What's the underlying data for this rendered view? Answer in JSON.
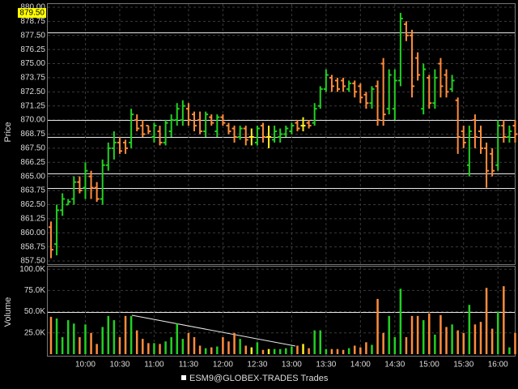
{
  "chart_data": [
    {
      "type": "ohlc",
      "y_label": "Price",
      "open": [
        860.5,
        859,
        862,
        862.5,
        863,
        864.5,
        864,
        865,
        864,
        863,
        866,
        867.5,
        868,
        868,
        868,
        870,
        869.5,
        869.5,
        868.5,
        869,
        868,
        869,
        870,
        870,
        871,
        870.5,
        870,
        869,
        870.25,
        869,
        870.25,
        869.5,
        869.25,
        868.5,
        869.25,
        868.5,
        868,
        869.5,
        868.5,
        868.25,
        868.5,
        868.75,
        869,
        869.75,
        869.5,
        869.75,
        869.75,
        871.25,
        872.75,
        873.75,
        873.5,
        873.5,
        872.75,
        873.25,
        873,
        872.25,
        871.5,
        873,
        875,
        871,
        871,
        873.5,
        878.5,
        877.5,
        875.5,
        871,
        873.75,
        871.5,
        875,
        874,
        872.75,
        871.75,
        869,
        866,
        870,
        869,
        867.5,
        867,
        866,
        869.5,
        868.5,
        869.5
      ],
      "high": [
        861,
        862.5,
        863.5,
        863,
        865,
        865,
        866.25,
        865.5,
        864.5,
        866.5,
        868,
        869,
        868.5,
        868.25,
        871,
        870.5,
        870,
        869.5,
        869.75,
        869.5,
        870,
        870.5,
        871.5,
        871.75,
        871.5,
        870.75,
        870.75,
        870.75,
        870.5,
        870.5,
        870.5,
        869.75,
        869.5,
        869.5,
        869.5,
        869.25,
        869.5,
        869.75,
        869.5,
        869.5,
        869.25,
        869.5,
        869.75,
        870,
        870.25,
        870,
        871.5,
        873,
        874.5,
        874,
        873.75,
        873.75,
        873.5,
        873.5,
        873.25,
        872.5,
        873,
        873.5,
        875.5,
        874.5,
        874.5,
        879.5,
        878.75,
        878,
        876,
        875,
        874,
        874.5,
        875.5,
        874.5,
        874,
        872,
        869.5,
        869.5,
        870.5,
        869.5,
        868,
        867.5,
        870,
        870,
        869.5,
        870
      ],
      "low": [
        857.75,
        858,
        861.5,
        862.5,
        862.5,
        863.5,
        863,
        863,
        862.75,
        862.5,
        865.5,
        866.5,
        867,
        867,
        867.5,
        869,
        868.5,
        868.75,
        868,
        867.75,
        867.75,
        868.5,
        869.5,
        869.5,
        869.5,
        869,
        868.75,
        868.5,
        869.5,
        868.5,
        869.5,
        868.75,
        868,
        868.25,
        867.75,
        867.75,
        867.75,
        868,
        867.5,
        868,
        868,
        868.5,
        868.75,
        869,
        869,
        869.25,
        869.5,
        871,
        872.5,
        872.5,
        872.5,
        872.5,
        872.5,
        872,
        871.5,
        871,
        871,
        869.5,
        869.5,
        870.5,
        870,
        873,
        877,
        872,
        873.5,
        870.5,
        871,
        871,
        872,
        872,
        872.5,
        867,
        867.5,
        865,
        867.5,
        867,
        864,
        865,
        865.5,
        868,
        868,
        868
      ],
      "close": [
        858.5,
        862,
        863,
        862.75,
        864.5,
        863.75,
        865.5,
        864,
        863,
        866,
        867.5,
        868,
        867.25,
        867.5,
        870.5,
        869.25,
        868.75,
        869,
        869.5,
        868,
        869.75,
        870,
        871,
        871.25,
        870,
        869.5,
        869,
        870.5,
        869.75,
        870.25,
        869.75,
        869,
        868.5,
        869.25,
        868.25,
        868.5,
        869.25,
        868.5,
        868.5,
        869,
        868.75,
        869.25,
        869.5,
        869.25,
        869.5,
        869.5,
        871,
        872.75,
        874,
        873,
        872.75,
        873,
        873.25,
        872.5,
        872,
        871.5,
        872.75,
        870,
        870.5,
        874,
        873.5,
        879,
        877.5,
        873,
        874,
        874.5,
        871.5,
        873.75,
        873,
        872.5,
        873.5,
        868.5,
        868,
        869,
        868.5,
        867.5,
        865.5,
        865.5,
        869.5,
        868.5,
        869,
        868.75
      ],
      "up_color": "#22d022",
      "down_color": "#ff8c3c",
      "flat_color": "#ffee22",
      "ylim": [
        857,
        880.5
      ],
      "yticks": [
        {
          "value": 880,
          "label": "880.00"
        },
        {
          "value": 878.75,
          "label": "878.75"
        },
        {
          "value": 877.5,
          "label": "877.50"
        },
        {
          "value": 876.25,
          "label": "876.25"
        },
        {
          "value": 875,
          "label": "875.00"
        },
        {
          "value": 873.75,
          "label": "873.75"
        },
        {
          "value": 872.5,
          "label": "872.50"
        },
        {
          "value": 871.25,
          "label": "871.25"
        },
        {
          "value": 870,
          "label": "870.00"
        },
        {
          "value": 868.75,
          "label": "868.75"
        },
        {
          "value": 867.5,
          "label": "867.50"
        },
        {
          "value": 866.25,
          "label": "866.25"
        },
        {
          "value": 865,
          "label": "865.00"
        },
        {
          "value": 863.75,
          "label": "863.75"
        },
        {
          "value": 862.5,
          "label": "862.50"
        },
        {
          "value": 861.25,
          "label": "861.25"
        },
        {
          "value": 860,
          "label": "860.00"
        },
        {
          "value": 858.75,
          "label": "858.75"
        },
        {
          "value": 857.5,
          "label": "857.50"
        }
      ],
      "levels": [
        877.75,
        870,
        868.5,
        865.25,
        864
      ],
      "price_marker": {
        "value": 879.5,
        "label": "879.50"
      },
      "grid": true
    },
    {
      "type": "bar",
      "y_label": "Volume",
      "categories": [
        null,
        null,
        null,
        null,
        null,
        null,
        "10:00",
        null,
        null,
        null,
        null,
        null,
        "10:30",
        null,
        null,
        null,
        null,
        null,
        "11:00",
        null,
        null,
        null,
        null,
        null,
        "11:30",
        null,
        null,
        null,
        null,
        null,
        "12:00",
        null,
        null,
        null,
        null,
        null,
        "12:30",
        null,
        null,
        null,
        null,
        null,
        "13:00",
        null,
        null,
        null,
        null,
        null,
        "13:30",
        null,
        null,
        null,
        null,
        null,
        "14:00",
        null,
        null,
        null,
        null,
        null,
        "14:30",
        null,
        null,
        null,
        null,
        null,
        "15:00",
        null,
        null,
        null,
        null,
        null,
        "15:30",
        null,
        null,
        null,
        null,
        null,
        "16:00",
        null,
        null,
        null
      ],
      "values": [
        44000,
        42000,
        20000,
        40000,
        36000,
        20000,
        35000,
        25000,
        12000,
        32000,
        45000,
        40000,
        20000,
        45000,
        45000,
        28000,
        18000,
        13000,
        13000,
        12000,
        15000,
        20000,
        36000,
        18000,
        25000,
        20000,
        10000,
        7000,
        8000,
        9000,
        20000,
        15000,
        25000,
        18000,
        10000,
        8000,
        14000,
        5000,
        6000,
        6000,
        6000,
        7000,
        9000,
        10000,
        12000,
        7000,
        28000,
        28000,
        6000,
        6000,
        6000,
        5000,
        7000,
        10000,
        8000,
        14000,
        11000,
        65000,
        25000,
        45000,
        20000,
        77000,
        20000,
        45000,
        45000,
        40000,
        48000,
        23000,
        46000,
        32000,
        35000,
        28000,
        25000,
        58000,
        35000,
        38000,
        78000,
        30000,
        50000,
        80000,
        8000,
        25000
      ],
      "ylim": [
        0,
        104000
      ],
      "yticks": [
        {
          "value": 100000,
          "label": "100.0K"
        },
        {
          "value": 75000,
          "label": "75.0K"
        },
        {
          "value": 50000,
          "label": "50.0K"
        },
        {
          "value": 25000,
          "label": "25.0K"
        }
      ],
      "levels": [
        50000
      ],
      "legend": "ESM9@GLOBEX-TRADES Trades",
      "grid": true
    }
  ]
}
